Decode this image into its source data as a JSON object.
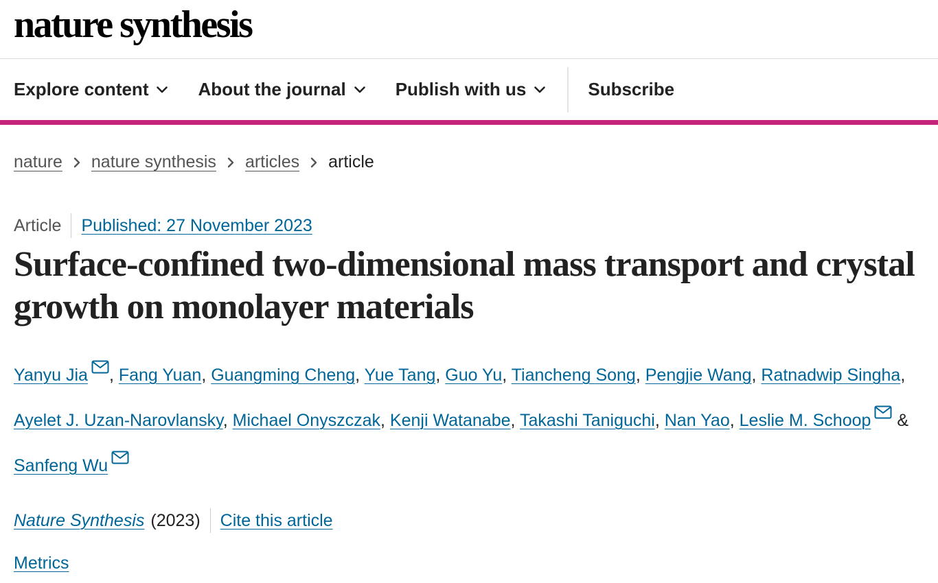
{
  "site": {
    "logo_text": "nature synthesis"
  },
  "nav": {
    "items": [
      {
        "label": "Explore content",
        "has_dropdown": true
      },
      {
        "label": "About the journal",
        "has_dropdown": true
      },
      {
        "label": "Publish with us",
        "has_dropdown": true
      }
    ],
    "subscribe_label": "Subscribe"
  },
  "breadcrumb": {
    "links": [
      "nature",
      "nature synthesis",
      "articles"
    ],
    "current": "article"
  },
  "article": {
    "type": "Article",
    "published": "Published: 27 November 2023",
    "title": "Surface-confined two-dimensional mass transport and crystal growth on monolayer materials",
    "authors": [
      {
        "name": "Yanyu Jia",
        "corresponding": true
      },
      {
        "name": "Fang Yuan",
        "corresponding": false
      },
      {
        "name": "Guangming Cheng",
        "corresponding": false
      },
      {
        "name": "Yue Tang",
        "corresponding": false
      },
      {
        "name": "Guo Yu",
        "corresponding": false
      },
      {
        "name": "Tiancheng Song",
        "corresponding": false
      },
      {
        "name": "Pengjie Wang",
        "corresponding": false
      },
      {
        "name": "Ratnadwip Singha",
        "corresponding": false
      },
      {
        "name": "Ayelet J. Uzan-Narovlansky",
        "corresponding": false
      },
      {
        "name": "Michael Onyszczak",
        "corresponding": false
      },
      {
        "name": "Kenji Watanabe",
        "corresponding": false
      },
      {
        "name": "Takashi Taniguchi",
        "corresponding": false
      },
      {
        "name": "Nan Yao",
        "corresponding": false
      },
      {
        "name": "Leslie M. Schoop",
        "corresponding": true
      },
      {
        "name": "Sanfeng Wu",
        "corresponding": true
      }
    ],
    "authors_separator": ", ",
    "authors_last_joiner": " & ",
    "journal": "Nature Synthesis",
    "year": "(2023)",
    "cite_label": "Cite this article",
    "metrics_label": "Metrics"
  },
  "colors": {
    "accent": "#c6247a",
    "link": "#006699",
    "text": "#222222",
    "muted": "#555555"
  },
  "icons": {
    "dropdown": "chevron-down-icon",
    "breadcrumb_sep": "chevron-right-icon",
    "corresponding": "mail-icon"
  }
}
